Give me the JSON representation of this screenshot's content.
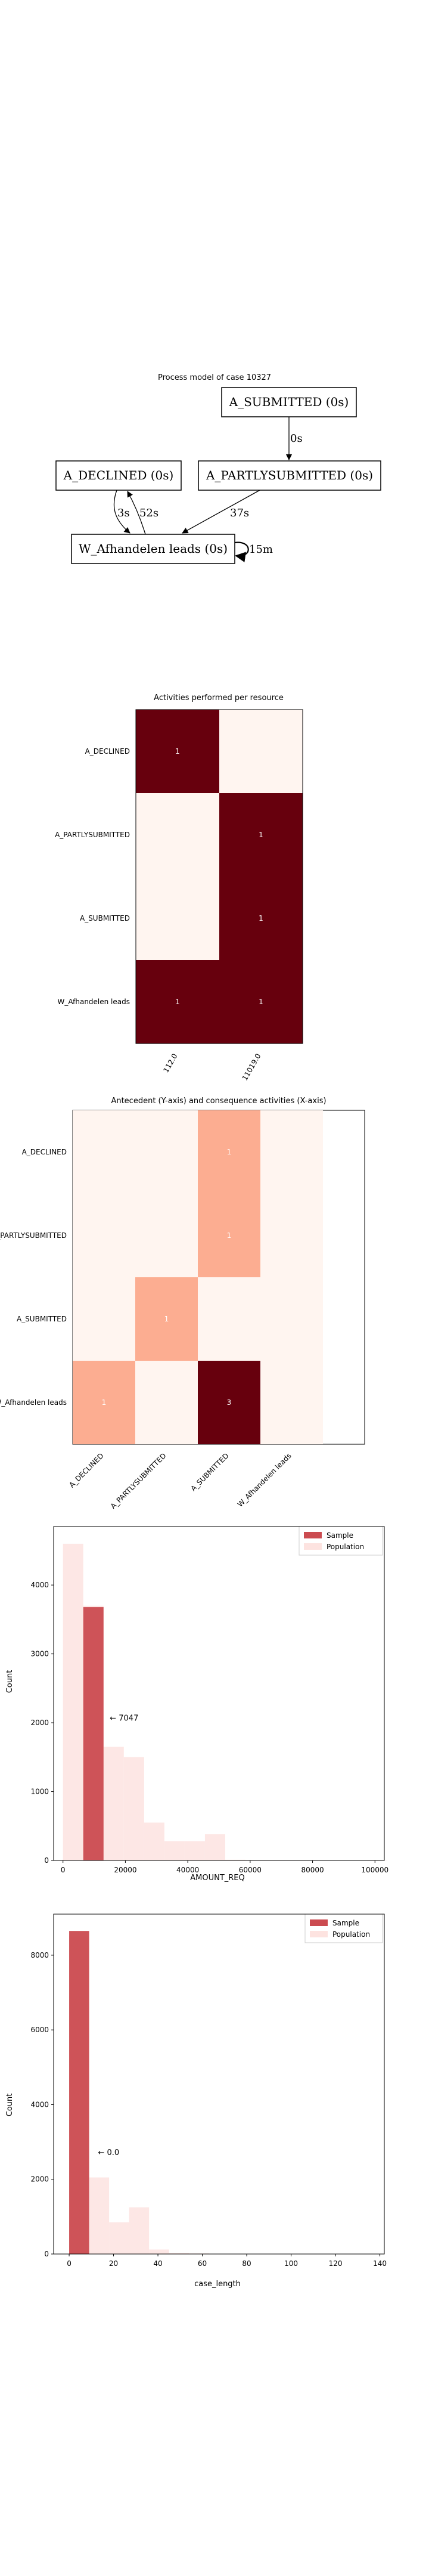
{
  "colors": {
    "dark_red": "#67000d",
    "mid_red": "#fc9272",
    "light_red": "#fff5f0",
    "pale_red": "#fee0d2",
    "sample_red": "#cb4b50",
    "population_pink": "#fde3e0"
  },
  "process_model": {
    "title": "Process model of case 10327",
    "nodes": [
      {
        "id": "submitted",
        "label": "A_SUBMITTED (0s)"
      },
      {
        "id": "declined",
        "label": "A_DECLINED (0s)"
      },
      {
        "id": "partly",
        "label": "A_PARTLYSUBMITTED (0s)"
      },
      {
        "id": "afhandelen",
        "label": "W_Afhandelen leads (0s)"
      }
    ],
    "edges": [
      {
        "from": "submitted",
        "to": "partly",
        "label": "0s"
      },
      {
        "from": "partly",
        "to": "afhandelen",
        "label": "37s"
      },
      {
        "from": "declined",
        "to": "afhandelen",
        "label": "3s"
      },
      {
        "from": "afhandelen",
        "to": "declined",
        "label": "52s"
      },
      {
        "from": "afhandelen",
        "to": "afhandelen",
        "label": "15m"
      }
    ]
  },
  "chart_data": [
    {
      "type": "heatmap",
      "title": "Activities performed per resource",
      "x_categories": [
        "112.0",
        "11019.0"
      ],
      "y_categories": [
        "A_DECLINED",
        "A_PARTLYSUBMITTED",
        "A_SUBMITTED",
        "W_Afhandelen leads"
      ],
      "values": [
        [
          1,
          0
        ],
        [
          0,
          1
        ],
        [
          0,
          1
        ],
        [
          1,
          1
        ]
      ],
      "cell_labels": [
        [
          "1",
          ""
        ],
        [
          "",
          "1"
        ],
        [
          "",
          "1"
        ],
        [
          "1",
          "1"
        ]
      ]
    },
    {
      "type": "heatmap",
      "title": "Antecedent (Y-axis) and consequence activities (X-axis)",
      "x_categories": [
        "A_DECLINED",
        "A_PARTLYSUBMITTED",
        "A_SUBMITTED",
        "W_Afhandelen leads"
      ],
      "y_categories": [
        "A_DECLINED",
        "A_PARTLYSUBMITTED",
        "A_SUBMITTED",
        "W_Afhandelen leads"
      ],
      "values": [
        [
          0,
          0,
          1,
          0
        ],
        [
          0,
          0,
          1,
          0
        ],
        [
          0,
          1,
          0,
          0
        ],
        [
          1,
          0,
          3,
          0
        ]
      ],
      "cell_labels": [
        [
          "",
          "",
          "1",
          ""
        ],
        [
          "",
          "",
          "1",
          ""
        ],
        [
          "",
          "1",
          "",
          ""
        ],
        [
          "1",
          "",
          "3",
          ""
        ]
      ]
    },
    {
      "type": "bar",
      "xlabel": "AMOUNT_REQ",
      "ylabel": "Count",
      "xlim": [
        -3000,
        103000
      ],
      "ylim": [
        0,
        4850
      ],
      "xticks": [
        "0",
        "20000",
        "40000",
        "60000",
        "80000",
        "100000"
      ],
      "xtick_values": [
        0,
        20000,
        40000,
        60000,
        80000,
        100000
      ],
      "yticks": [
        "0",
        "1000",
        "2000",
        "3000",
        "4000"
      ],
      "ytick_values": [
        0,
        1000,
        2000,
        3000,
        4000
      ],
      "legend": [
        "Sample",
        "Population"
      ],
      "legend_position": "upper right",
      "annotation": "← 7047",
      "annotation_at": [
        15000,
        2030
      ],
      "series": [
        {
          "name": "Population",
          "bin_width": 6500,
          "bin_starts": [
            0,
            6500,
            13000,
            19500,
            26000,
            32500,
            39000,
            45500,
            52000,
            58500,
            65000,
            71500,
            78000,
            84500,
            91000,
            97500
          ],
          "values": [
            4600,
            3700,
            1650,
            1500,
            550,
            280,
            280,
            380,
            10,
            5,
            5,
            5,
            0,
            0,
            0,
            5
          ]
        },
        {
          "name": "Sample",
          "bin_width": 6500,
          "bin_starts": [
            6500
          ],
          "values": [
            3680
          ]
        }
      ]
    },
    {
      "type": "bar",
      "xlabel": "case_length",
      "ylabel": "Count",
      "xlim": [
        -7,
        142
      ],
      "ylim": [
        0,
        9100
      ],
      "xticks": [
        "0",
        "20",
        "40",
        "60",
        "80",
        "100",
        "120",
        "140"
      ],
      "xtick_values": [
        0,
        20,
        40,
        60,
        80,
        100,
        120,
        140
      ],
      "yticks": [
        "0",
        "2000",
        "4000",
        "6000",
        "8000"
      ],
      "ytick_values": [
        0,
        2000,
        4000,
        6000,
        8000
      ],
      "legend": [
        "Sample",
        "Population"
      ],
      "legend_position": "upper right",
      "annotation": "← 0.0",
      "annotation_at": [
        13,
        2650
      ],
      "series": [
        {
          "name": "Population",
          "bin_width": 9,
          "bin_starts": [
            0,
            9,
            18,
            27,
            36,
            45,
            54,
            63,
            72,
            81,
            90,
            99,
            108,
            117,
            126,
            135
          ],
          "values": [
            8500,
            2050,
            850,
            1250,
            120,
            30,
            15,
            5,
            0,
            0,
            0,
            0,
            0,
            0,
            0,
            0
          ]
        },
        {
          "name": "Sample",
          "bin_width": 9,
          "bin_starts": [
            0
          ],
          "values": [
            8650
          ]
        }
      ]
    }
  ]
}
